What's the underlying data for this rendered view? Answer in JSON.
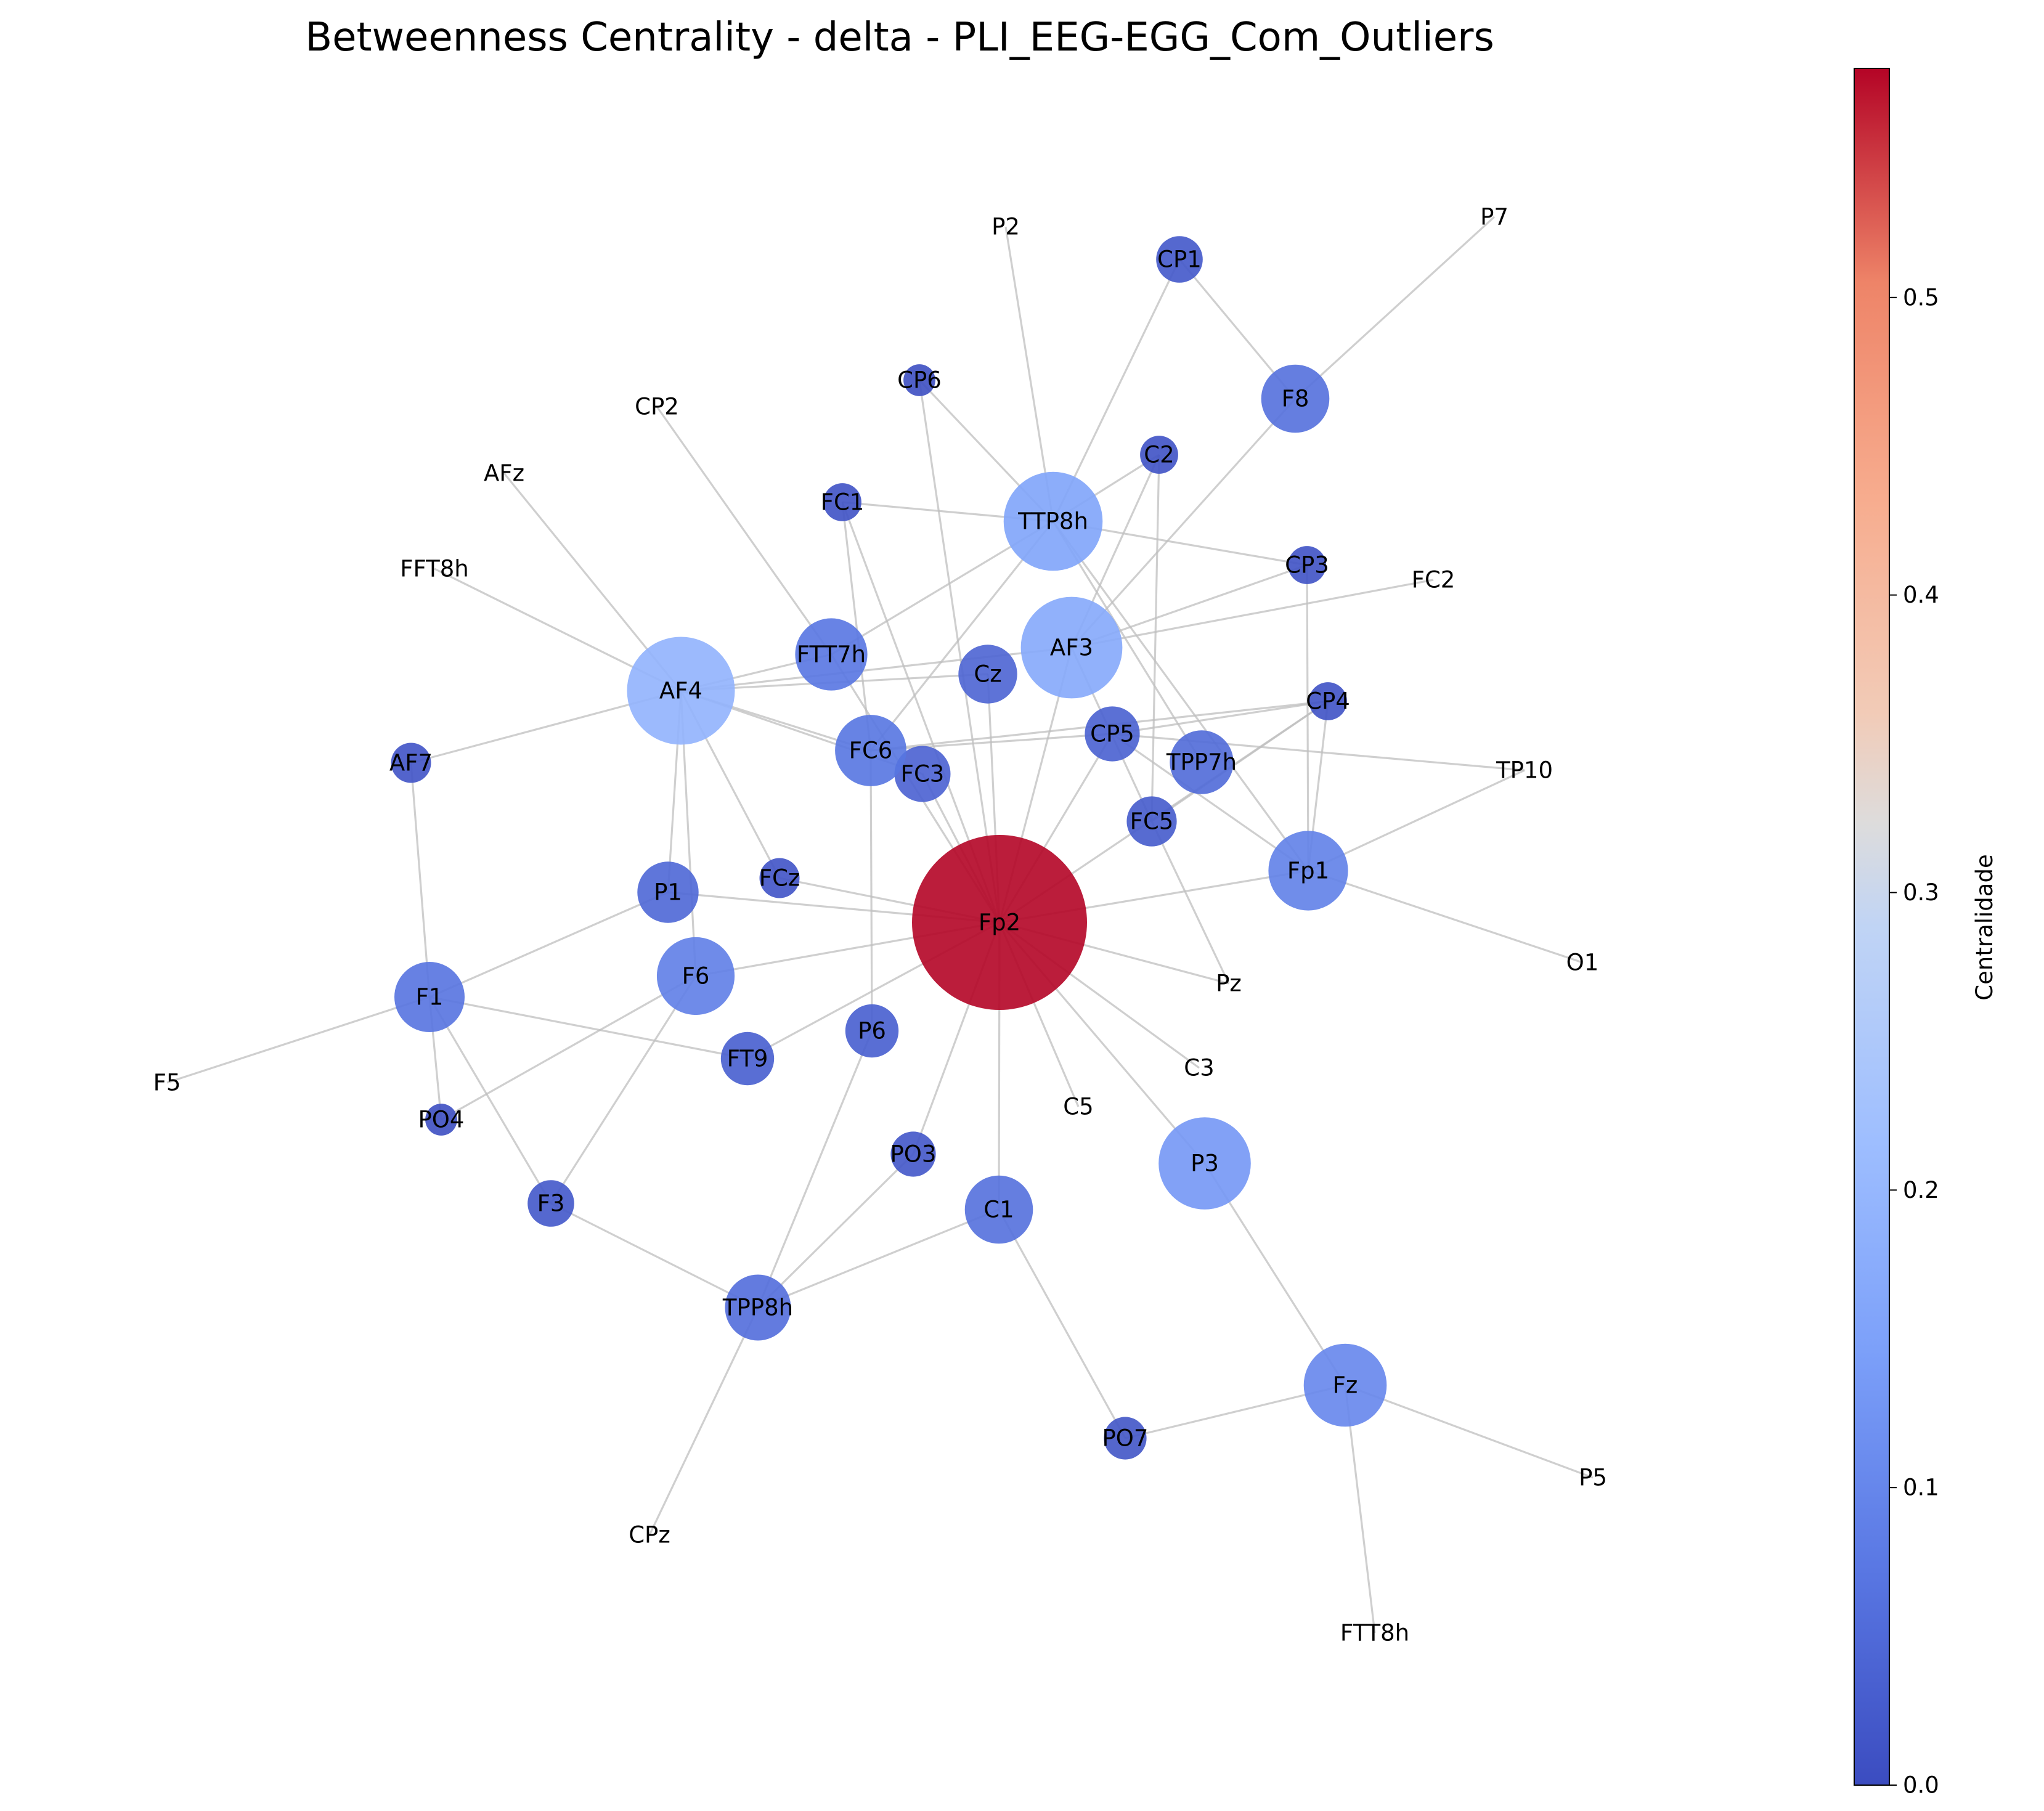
{
  "title": "Betweenness Centrality - delta - PLI_EEG-EGG_Com_Outliers",
  "colorbar": {
    "label": "Centralidade",
    "min": 0.0,
    "max": 0.577,
    "ticks": [
      "0.0",
      "0.1",
      "0.2",
      "0.3",
      "0.4",
      "0.5"
    ],
    "colormap": "coolwarm"
  },
  "chart_data": {
    "type": "network",
    "title": "Betweenness Centrality - delta - PLI_EEG-EGG_Com_Outliers",
    "colorbar_label": "Centralidade",
    "nodes": [
      {
        "id": "Fp2",
        "value": 0.577
      },
      {
        "id": "AF4",
        "value": 0.19
      },
      {
        "id": "AF3",
        "value": 0.165
      },
      {
        "id": "TTP8h",
        "value": 0.155
      },
      {
        "id": "P3",
        "value": 0.13
      },
      {
        "id": "Fz",
        "value": 0.1
      },
      {
        "id": "Fp1",
        "value": 0.09
      },
      {
        "id": "F6",
        "value": 0.085
      },
      {
        "id": "FTT7h",
        "value": 0.07
      },
      {
        "id": "FC6",
        "value": 0.068
      },
      {
        "id": "F1",
        "value": 0.065
      },
      {
        "id": "F8",
        "value": 0.06
      },
      {
        "id": "C1",
        "value": 0.06
      },
      {
        "id": "TPP8h",
        "value": 0.055
      },
      {
        "id": "TPP7h",
        "value": 0.05
      },
      {
        "id": "P1",
        "value": 0.045
      },
      {
        "id": "Cz",
        "value": 0.04
      },
      {
        "id": "FC3",
        "value": 0.035
      },
      {
        "id": "CP5",
        "value": 0.033
      },
      {
        "id": "P6",
        "value": 0.03
      },
      {
        "id": "FT9",
        "value": 0.03
      },
      {
        "id": "FC5",
        "value": 0.025
      },
      {
        "id": "CP1",
        "value": 0.02
      },
      {
        "id": "F3",
        "value": 0.02
      },
      {
        "id": "PO3",
        "value": 0.018
      },
      {
        "id": "PO7",
        "value": 0.015
      },
      {
        "id": "AF7",
        "value": 0.012
      },
      {
        "id": "FCz",
        "value": 0.012
      },
      {
        "id": "FC1",
        "value": 0.01
      },
      {
        "id": "C2",
        "value": 0.01
      },
      {
        "id": "CP3",
        "value": 0.01
      },
      {
        "id": "CP4",
        "value": 0.01
      },
      {
        "id": "CP6",
        "value": 0.005
      },
      {
        "id": "PO4",
        "value": 0.005
      },
      {
        "id": "P2",
        "value": 0.0
      },
      {
        "id": "P7",
        "value": 0.0
      },
      {
        "id": "CP2",
        "value": 0.0
      },
      {
        "id": "AFz",
        "value": 0.0
      },
      {
        "id": "FFT8h",
        "value": 0.0
      },
      {
        "id": "FC2",
        "value": 0.0
      },
      {
        "id": "TP10",
        "value": 0.0
      },
      {
        "id": "O1",
        "value": 0.0
      },
      {
        "id": "Pz",
        "value": 0.0
      },
      {
        "id": "C3",
        "value": 0.0
      },
      {
        "id": "C5",
        "value": 0.0
      },
      {
        "id": "F5",
        "value": 0.0
      },
      {
        "id": "CPz",
        "value": 0.0
      },
      {
        "id": "P5",
        "value": 0.0
      },
      {
        "id": "FTT8h",
        "value": 0.0
      }
    ],
    "edges": [
      [
        "P2",
        "TTP8h"
      ],
      [
        "CP1",
        "TTP8h"
      ],
      [
        "CP1",
        "F8"
      ],
      [
        "P7",
        "F8"
      ],
      [
        "F8",
        "AF3"
      ],
      [
        "CP6",
        "TTP8h"
      ],
      [
        "CP6",
        "Fp2"
      ],
      [
        "C2",
        "TTP8h"
      ],
      [
        "C2",
        "AF3"
      ],
      [
        "C2",
        "FC5"
      ],
      [
        "FC1",
        "TTP8h"
      ],
      [
        "FC1",
        "FC6"
      ],
      [
        "FC1",
        "Fp2"
      ],
      [
        "TTP8h",
        "CP3"
      ],
      [
        "TTP8h",
        "FTT7h"
      ],
      [
        "TTP8h",
        "FC6"
      ],
      [
        "TTP8h",
        "TPP7h"
      ],
      [
        "TTP8h",
        "Fp1"
      ],
      [
        "CP3",
        "AF3"
      ],
      [
        "CP3",
        "Fp1"
      ],
      [
        "FC2",
        "AF3"
      ],
      [
        "AF3",
        "AF4"
      ],
      [
        "AF3",
        "Fp2"
      ],
      [
        "AF3",
        "FC5"
      ],
      [
        "CP2",
        "FTT7h"
      ],
      [
        "FTT7h",
        "Fp2"
      ],
      [
        "AFz",
        "AF4"
      ],
      [
        "FFT8h",
        "AF4"
      ],
      [
        "AF4",
        "Cz"
      ],
      [
        "AF4",
        "FTT7h"
      ],
      [
        "AF4",
        "FC6"
      ],
      [
        "AF4",
        "FC3"
      ],
      [
        "AF4",
        "AF7"
      ],
      [
        "AF4",
        "P1"
      ],
      [
        "AF4",
        "F6"
      ],
      [
        "AF4",
        "FCz"
      ],
      [
        "Cz",
        "Fp2"
      ],
      [
        "CP4",
        "FC6"
      ],
      [
        "CP4",
        "CP5"
      ],
      [
        "CP4",
        "Fp1"
      ],
      [
        "CP4",
        "FC5"
      ],
      [
        "CP4",
        "Fp2"
      ],
      [
        "CP5",
        "TP10"
      ],
      [
        "CP5",
        "Fp2"
      ],
      [
        "CP5",
        "FC6"
      ],
      [
        "CP5",
        "Fp1"
      ],
      [
        "FC6",
        "P6"
      ],
      [
        "FC3",
        "Fp2"
      ],
      [
        "TP10",
        "Fp1"
      ],
      [
        "Fp1",
        "Fp2"
      ],
      [
        "Fp1",
        "O1"
      ],
      [
        "FC5",
        "Pz"
      ],
      [
        "AF7",
        "F1"
      ],
      [
        "P1",
        "F1"
      ],
      [
        "P1",
        "Fp2"
      ],
      [
        "FCz",
        "Fp2"
      ],
      [
        "F6",
        "Fp2"
      ],
      [
        "F6",
        "F3"
      ],
      [
        "F6",
        "PO4"
      ],
      [
        "Fp2",
        "Pz"
      ],
      [
        "Fp2",
        "C3"
      ],
      [
        "Fp2",
        "C5"
      ],
      [
        "Fp2",
        "P3"
      ],
      [
        "Fp2",
        "FT9"
      ],
      [
        "Fp2",
        "PO3"
      ],
      [
        "Fp2",
        "C1"
      ],
      [
        "F1",
        "F5"
      ],
      [
        "F1",
        "FT9"
      ],
      [
        "F1",
        "F3"
      ],
      [
        "F1",
        "PO4"
      ],
      [
        "P6",
        "TPP8h"
      ],
      [
        "F3",
        "TPP8h"
      ],
      [
        "PO3",
        "TPP8h"
      ],
      [
        "C1",
        "TPP8h"
      ],
      [
        "C1",
        "PO7"
      ],
      [
        "TPP8h",
        "CPz"
      ],
      [
        "P3",
        "Fz"
      ],
      [
        "PO7",
        "Fz"
      ],
      [
        "Fz",
        "P5"
      ],
      [
        "Fz",
        "FTT8h"
      ]
    ]
  }
}
